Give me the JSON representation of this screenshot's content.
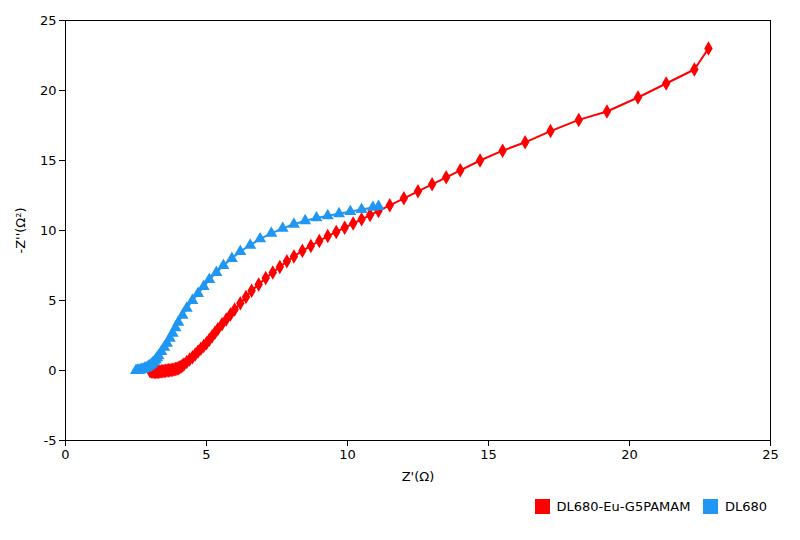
{
  "chart_data": {
    "type": "line",
    "xlabel": "Z'(Ω)",
    "ylabel": "-Z''(Ω²)",
    "xlim": [
      0,
      25
    ],
    "ylim": [
      -5,
      25
    ],
    "xticks": [
      0,
      5,
      10,
      15,
      20,
      25
    ],
    "yticks": [
      -5,
      0,
      5,
      10,
      15,
      20,
      25
    ],
    "grid": false,
    "legend": "lower right",
    "series": [
      {
        "name": "DL680-Eu-G5PAMAM",
        "color": "#FF0000",
        "marker": "diamond",
        "x": [
          3.0,
          3.05,
          3.1,
          3.15,
          3.2,
          3.25,
          3.3,
          3.35,
          3.4,
          3.45,
          3.5,
          3.55,
          3.6,
          3.65,
          3.7,
          3.75,
          3.8,
          3.85,
          3.9,
          3.95,
          4.0,
          4.05,
          4.1,
          4.15,
          4.2,
          4.3,
          4.4,
          4.5,
          4.6,
          4.7,
          4.8,
          4.9,
          5.0,
          5.1,
          5.2,
          5.3,
          5.4,
          5.55,
          5.7,
          5.85,
          6.0,
          6.2,
          6.4,
          6.6,
          6.85,
          7.1,
          7.35,
          7.6,
          7.85,
          8.1,
          8.4,
          8.7,
          9.0,
          9.3,
          9.6,
          9.9,
          10.2,
          10.5,
          10.8,
          11.1,
          11.5,
          12.0,
          12.5,
          13.0,
          13.5,
          14.0,
          14.7,
          15.5,
          16.3,
          17.2,
          18.2,
          19.2,
          20.3,
          21.3,
          22.3,
          22.8
        ],
        "values": [
          -0.05,
          -0.07,
          -0.09,
          -0.1,
          -0.11,
          -0.1,
          -0.09,
          -0.08,
          -0.06,
          -0.05,
          -0.04,
          -0.02,
          0.0,
          0.01,
          0.02,
          0.03,
          0.05,
          0.07,
          0.1,
          0.13,
          0.17,
          0.22,
          0.28,
          0.35,
          0.43,
          0.6,
          0.78,
          0.95,
          1.15,
          1.35,
          1.55,
          1.75,
          1.95,
          2.2,
          2.45,
          2.7,
          2.95,
          3.3,
          3.65,
          4.0,
          4.35,
          4.8,
          5.25,
          5.7,
          6.15,
          6.6,
          7.0,
          7.4,
          7.8,
          8.15,
          8.55,
          8.9,
          9.25,
          9.6,
          9.9,
          10.2,
          10.5,
          10.8,
          11.1,
          11.4,
          11.8,
          12.3,
          12.8,
          13.3,
          13.8,
          14.3,
          15.0,
          15.7,
          16.3,
          17.1,
          17.9,
          18.5,
          19.5,
          20.5,
          21.5,
          23.0
        ]
      },
      {
        "name": "DL680",
        "color": "#2196F3",
        "marker": "triangle",
        "x": [
          2.5,
          2.55,
          2.6,
          2.65,
          2.7,
          2.75,
          2.8,
          2.85,
          2.9,
          2.95,
          3.0,
          3.05,
          3.1,
          3.15,
          3.2,
          3.25,
          3.3,
          3.4,
          3.5,
          3.6,
          3.7,
          3.8,
          3.9,
          4.0,
          4.15,
          4.3,
          4.5,
          4.7,
          4.9,
          5.1,
          5.35,
          5.6,
          5.9,
          6.2,
          6.55,
          6.9,
          7.3,
          7.7,
          8.1,
          8.5,
          8.9,
          9.3,
          9.7,
          10.1,
          10.5,
          10.9,
          11.1
        ],
        "values": [
          0.0,
          0.01,
          0.02,
          0.04,
          0.07,
          0.1,
          0.14,
          0.18,
          0.23,
          0.3,
          0.37,
          0.45,
          0.55,
          0.65,
          0.77,
          0.9,
          1.05,
          1.35,
          1.65,
          1.95,
          2.3,
          2.65,
          3.05,
          3.45,
          3.95,
          4.45,
          5.0,
          5.5,
          6.0,
          6.5,
          7.0,
          7.5,
          8.0,
          8.5,
          8.95,
          9.4,
          9.8,
          10.15,
          10.45,
          10.7,
          10.9,
          11.05,
          11.2,
          11.35,
          11.5,
          11.65,
          11.72
        ]
      }
    ]
  }
}
